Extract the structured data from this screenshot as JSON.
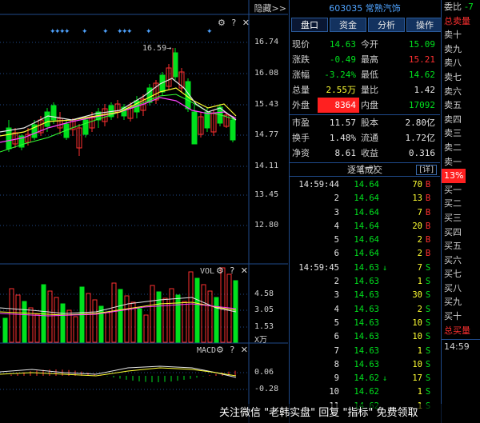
{
  "header": {
    "hide_label": "隐藏>>"
  },
  "stock": {
    "title": "603035 常熟汽饰"
  },
  "tabs": [
    {
      "label": "盘口"
    },
    {
      "label": "资金"
    },
    {
      "label": "分析"
    },
    {
      "label": "操作"
    }
  ],
  "quote": {
    "rows1": [
      {
        "l1": "现价",
        "v1": "14.63",
        "c1": "green",
        "l2": "今开",
        "v2": "15.09",
        "c2": "green"
      },
      {
        "l1": "涨跌",
        "v1": "-0.49",
        "c1": "green",
        "l2": "最高",
        "v2": "15.21",
        "c2": "red"
      },
      {
        "l1": "涨幅",
        "v1": "-3.24%",
        "c1": "green",
        "l2": "最低",
        "v2": "14.62",
        "c2": "green"
      },
      {
        "l1": "总量",
        "v1": "2.55万",
        "c1": "yellow",
        "l2": "量比",
        "v2": "1.42",
        "c2": "white"
      },
      {
        "l1": "外盘",
        "v1": "8364",
        "c1": "redbg",
        "l2": "内盘",
        "v2": "17092",
        "c2": "green"
      }
    ],
    "rows2": [
      {
        "l1": "市盈",
        "v1": "11.57",
        "c1": "white",
        "l2": "股本",
        "v2": "2.80亿",
        "c2": "white"
      },
      {
        "l1": "换手",
        "v1": "1.48%",
        "c1": "white",
        "l2": "流通",
        "v2": "1.72亿",
        "c2": "white"
      },
      {
        "l1": "净资",
        "v1": "8.61",
        "c1": "white",
        "l2": "收益(一)",
        "v2": "0.316",
        "c2": "white"
      }
    ]
  },
  "ticks": {
    "header": "逐笔成交",
    "detail": "[详]",
    "rows": [
      {
        "time": "14:59:44",
        "price": "14.64",
        "arrow": "",
        "vol": "70",
        "side": "B"
      },
      {
        "time": "2",
        "price": "14.64",
        "arrow": "",
        "vol": "13",
        "side": "B"
      },
      {
        "time": "3",
        "price": "14.64",
        "arrow": "",
        "vol": "7",
        "side": "B"
      },
      {
        "time": "4",
        "price": "14.64",
        "arrow": "",
        "vol": "20",
        "side": "B"
      },
      {
        "time": "5",
        "price": "14.64",
        "arrow": "",
        "vol": "2",
        "side": "B"
      },
      {
        "time": "6",
        "price": "14.64",
        "arrow": "",
        "vol": "2",
        "side": "B"
      },
      {
        "time": "14:59:45",
        "price": "14.63",
        "arrow": "↓",
        "vol": "7",
        "side": "S"
      },
      {
        "time": "2",
        "price": "14.63",
        "arrow": "",
        "vol": "1",
        "side": "S"
      },
      {
        "time": "3",
        "price": "14.63",
        "arrow": "",
        "vol": "30",
        "side": "S"
      },
      {
        "time": "4",
        "price": "14.63",
        "arrow": "",
        "vol": "2",
        "side": "S"
      },
      {
        "time": "5",
        "price": "14.63",
        "arrow": "",
        "vol": "10",
        "side": "S"
      },
      {
        "time": "6",
        "price": "14.63",
        "arrow": "",
        "vol": "10",
        "side": "S"
      },
      {
        "time": "7",
        "price": "14.63",
        "arrow": "",
        "vol": "1",
        "side": "S"
      },
      {
        "time": "8",
        "price": "14.63",
        "arrow": "",
        "vol": "10",
        "side": "S"
      },
      {
        "time": "9",
        "price": "14.62",
        "arrow": "↓",
        "vol": "17",
        "side": "S"
      },
      {
        "time": "10",
        "price": "14.62",
        "arrow": "",
        "vol": "1",
        "side": "S"
      },
      {
        "time": "11",
        "price": "14.62",
        "arrow": "",
        "vol": "1",
        "side": "S"
      }
    ]
  },
  "order_book": {
    "ratio_label": "委比",
    "ratio_value": "-7",
    "sell_total": "总卖量",
    "sells": [
      "卖十",
      "卖九",
      "卖八",
      "卖七",
      "卖六",
      "卖五",
      "卖四",
      "卖三",
      "卖二",
      "卖一"
    ],
    "pct": "13%",
    "buys": [
      "买一",
      "买二",
      "买三",
      "买四",
      "买五",
      "买六",
      "买七",
      "买八",
      "买九",
      "买十"
    ],
    "buy_total": "总买量",
    "time": "14:59"
  },
  "panels": {
    "price_axis": [
      "16.74",
      "16.08",
      "15.43",
      "14.77",
      "14.11",
      "13.45",
      "12.80"
    ],
    "high_label": "16.59",
    "vol_title": "VOL",
    "vol_axis": [
      "4.58",
      "3.05",
      "1.53",
      "X万"
    ],
    "macd_title": "MACD",
    "macd_axis": [
      "0.06",
      "-0.28"
    ],
    "icons": [
      "⚙",
      "?",
      "✕"
    ]
  },
  "watermark": "关注微信 \"老韩实盘\" 回复 \"指标\" 免费领取",
  "colors": {
    "up": "#ff3030",
    "down": "#00e11e",
    "ma5": "#e6e6e6",
    "ma10": "#ffff33",
    "ma20": "#ff44ff",
    "ma60": "#33ff33",
    "grid": "#1f4a8a"
  }
}
